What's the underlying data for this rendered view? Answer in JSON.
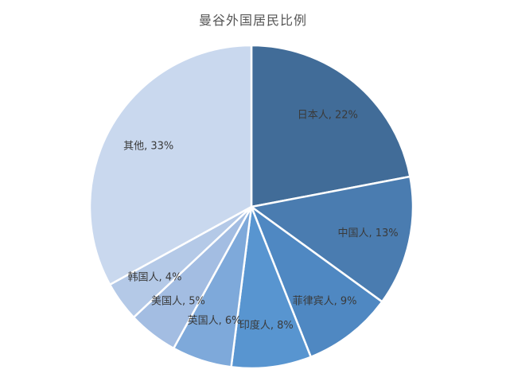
{
  "chart_data": {
    "type": "pie",
    "title": "曼谷外国居民比例",
    "slices": [
      {
        "label": "日本人",
        "value": 22,
        "text": "日本人, 22%",
        "color": "#416c98"
      },
      {
        "label": "中国人",
        "value": 13,
        "text": "中国人, 13%",
        "color": "#4a7cb0"
      },
      {
        "label": "菲律宾人",
        "value": 9,
        "text": "菲律宾人, 9%",
        "color": "#4f88c2"
      },
      {
        "label": "印度人",
        "value": 8,
        "text": "印度人, 8%",
        "color": "#5895d0"
      },
      {
        "label": "英国人",
        "value": 6,
        "text": "英国人, 6%",
        "color": "#7ea9da"
      },
      {
        "label": "美国人",
        "value": 5,
        "text": "美国人, 5%",
        "color": "#a3bde2"
      },
      {
        "label": "韩国人",
        "value": 4,
        "text": "韩国人, 4%",
        "color": "#b4c9e7"
      },
      {
        "label": "其他",
        "value": 33,
        "text": "其他, 33%",
        "color": "#c9d8ee"
      }
    ],
    "legend": "none"
  }
}
